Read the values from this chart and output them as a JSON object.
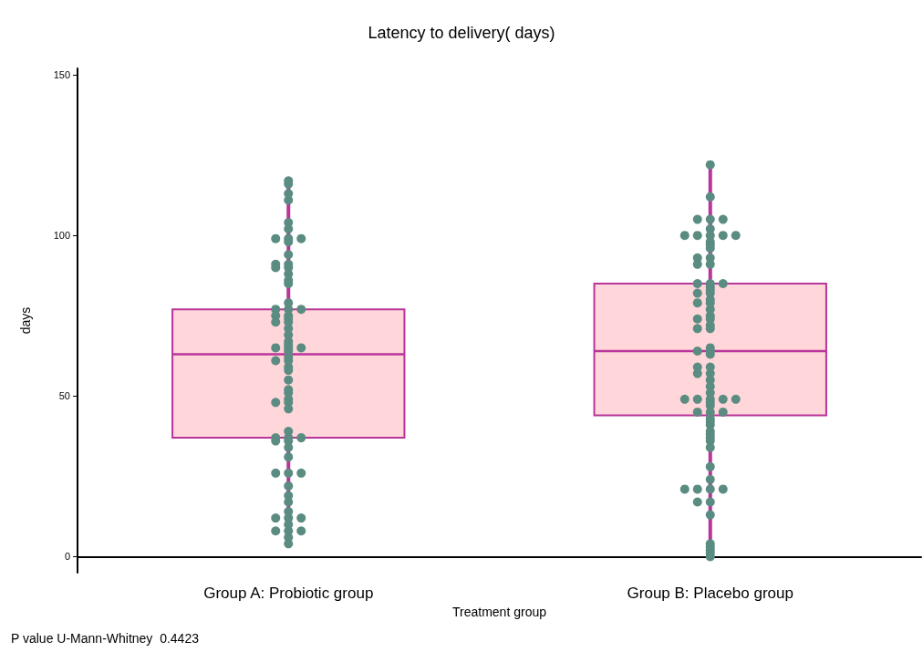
{
  "chart_data": {
    "type": "box",
    "title": "Latency to delivery( days)",
    "xlabel": "Treatment group",
    "ylabel": "days",
    "categories": [
      "Group A: Probiotic group",
      "Group B: Placebo group"
    ],
    "ylim": [
      -5,
      152
    ],
    "yticks": [
      0,
      50,
      100,
      150
    ],
    "grid": false,
    "marker": "circle",
    "annotations": [
      "P value U-Mann-Whitney  0.4423"
    ],
    "series": [
      {
        "type": "box",
        "color": "#ffd6d9",
        "boxes": [
          {
            "low": 4,
            "q1": 37,
            "median": 63,
            "q3": 77,
            "high": 117
          },
          {
            "low": 0,
            "q1": 44,
            "median": 64,
            "q3": 85,
            "high": 122
          }
        ]
      },
      {
        "type": "scatter",
        "color": "#5b8c82",
        "x": [
          "Group A: Probiotic group",
          "Group A: Probiotic group",
          "Group A: Probiotic group",
          "Group A: Probiotic group",
          "Group A: Probiotic group",
          "Group A: Probiotic group",
          "Group A: Probiotic group",
          "Group A: Probiotic group",
          "Group A: Probiotic group",
          "Group A: Probiotic group",
          "Group A: Probiotic group",
          "Group A: Probiotic group",
          "Group A: Probiotic group",
          "Group A: Probiotic group",
          "Group A: Probiotic group",
          "Group A: Probiotic group",
          "Group A: Probiotic group",
          "Group A: Probiotic group",
          "Group A: Probiotic group",
          "Group A: Probiotic group",
          "Group A: Probiotic group",
          "Group A: Probiotic group",
          "Group A: Probiotic group",
          "Group A: Probiotic group",
          "Group A: Probiotic group",
          "Group A: Probiotic group",
          "Group A: Probiotic group",
          "Group A: Probiotic group",
          "Group A: Probiotic group",
          "Group A: Probiotic group",
          "Group A: Probiotic group",
          "Group A: Probiotic group",
          "Group A: Probiotic group",
          "Group A: Probiotic group",
          "Group A: Probiotic group",
          "Group A: Probiotic group",
          "Group A: Probiotic group",
          "Group A: Probiotic group",
          "Group A: Probiotic group",
          "Group A: Probiotic group",
          "Group A: Probiotic group",
          "Group A: Probiotic group",
          "Group A: Probiotic group",
          "Group A: Probiotic group",
          "Group A: Probiotic group",
          "Group A: Probiotic group",
          "Group A: Probiotic group",
          "Group A: Probiotic group",
          "Group A: Probiotic group",
          "Group A: Probiotic group",
          "Group A: Probiotic group",
          "Group A: Probiotic group",
          "Group A: Probiotic group",
          "Group A: Probiotic group",
          "Group A: Probiotic group",
          "Group A: Probiotic group",
          "Group A: Probiotic group",
          "Group A: Probiotic group",
          "Group A: Probiotic group",
          "Group A: Probiotic group",
          "Group A: Probiotic group",
          "Group A: Probiotic group",
          "Group A: Probiotic group",
          "Group A: Probiotic group",
          "Group A: Probiotic group",
          "Group A: Probiotic group",
          "Group A: Probiotic group",
          "Group A: Probiotic group",
          "Group A: Probiotic group",
          "Group A: Probiotic group",
          "Group A: Probiotic group"
        ],
        "values": [
          117,
          116,
          113,
          111,
          104,
          102,
          99,
          99,
          99,
          98,
          94,
          91,
          91,
          90,
          90,
          88,
          86,
          85,
          79,
          77,
          77,
          77,
          75,
          75,
          74,
          73,
          73,
          71,
          69,
          67,
          66,
          65,
          65,
          65,
          64,
          62,
          61,
          61,
          59,
          58,
          55,
          52,
          51,
          49,
          48,
          48,
          46,
          39,
          37,
          37,
          37,
          36,
          36,
          34,
          31,
          26,
          26,
          26,
          22,
          19,
          17,
          14,
          12,
          12,
          12,
          10,
          8,
          8,
          8,
          6,
          4
        ]
      },
      {
        "type": "scatter",
        "color": "#5b8c82",
        "x": [
          "Group B: Placebo group",
          "Group B: Placebo group",
          "Group B: Placebo group",
          "Group B: Placebo group",
          "Group B: Placebo group",
          "Group B: Placebo group",
          "Group B: Placebo group",
          "Group B: Placebo group",
          "Group B: Placebo group",
          "Group B: Placebo group",
          "Group B: Placebo group",
          "Group B: Placebo group",
          "Group B: Placebo group",
          "Group B: Placebo group",
          "Group B: Placebo group",
          "Group B: Placebo group",
          "Group B: Placebo group",
          "Group B: Placebo group",
          "Group B: Placebo group",
          "Group B: Placebo group",
          "Group B: Placebo group",
          "Group B: Placebo group",
          "Group B: Placebo group",
          "Group B: Placebo group",
          "Group B: Placebo group",
          "Group B: Placebo group",
          "Group B: Placebo group",
          "Group B: Placebo group",
          "Group B: Placebo group",
          "Group B: Placebo group",
          "Group B: Placebo group",
          "Group B: Placebo group",
          "Group B: Placebo group",
          "Group B: Placebo group",
          "Group B: Placebo group",
          "Group B: Placebo group",
          "Group B: Placebo group",
          "Group B: Placebo group",
          "Group B: Placebo group",
          "Group B: Placebo group",
          "Group B: Placebo group",
          "Group B: Placebo group",
          "Group B: Placebo group",
          "Group B: Placebo group",
          "Group B: Placebo group",
          "Group B: Placebo group",
          "Group B: Placebo group",
          "Group B: Placebo group",
          "Group B: Placebo group",
          "Group B: Placebo group",
          "Group B: Placebo group",
          "Group B: Placebo group",
          "Group B: Placebo group",
          "Group B: Placebo group",
          "Group B: Placebo group",
          "Group B: Placebo group",
          "Group B: Placebo group",
          "Group B: Placebo group",
          "Group B: Placebo group",
          "Group B: Placebo group",
          "Group B: Placebo group",
          "Group B: Placebo group",
          "Group B: Placebo group",
          "Group B: Placebo group",
          "Group B: Placebo group",
          "Group B: Placebo group",
          "Group B: Placebo group",
          "Group B: Placebo group",
          "Group B: Placebo group",
          "Group B: Placebo group",
          "Group B: Placebo group",
          "Group B: Placebo group",
          "Group B: Placebo group",
          "Group B: Placebo group",
          "Group B: Placebo group",
          "Group B: Placebo group",
          "Group B: Placebo group",
          "Group B: Placebo group"
        ],
        "values": [
          122,
          112,
          105,
          105,
          105,
          102,
          100,
          100,
          100,
          100,
          100,
          98,
          97,
          96,
          93,
          93,
          91,
          91,
          85,
          85,
          85,
          84,
          83,
          82,
          82,
          80,
          79,
          79,
          77,
          75,
          74,
          74,
          72,
          71,
          71,
          65,
          64,
          64,
          63,
          59,
          59,
          57,
          57,
          55,
          53,
          51,
          49,
          49,
          49,
          49,
          49,
          48,
          47,
          45,
          45,
          45,
          43,
          42,
          41,
          39,
          38,
          37,
          36,
          34,
          28,
          24,
          21,
          21,
          21,
          21,
          17,
          17,
          13,
          4,
          3,
          2,
          1,
          0
        ]
      }
    ]
  }
}
